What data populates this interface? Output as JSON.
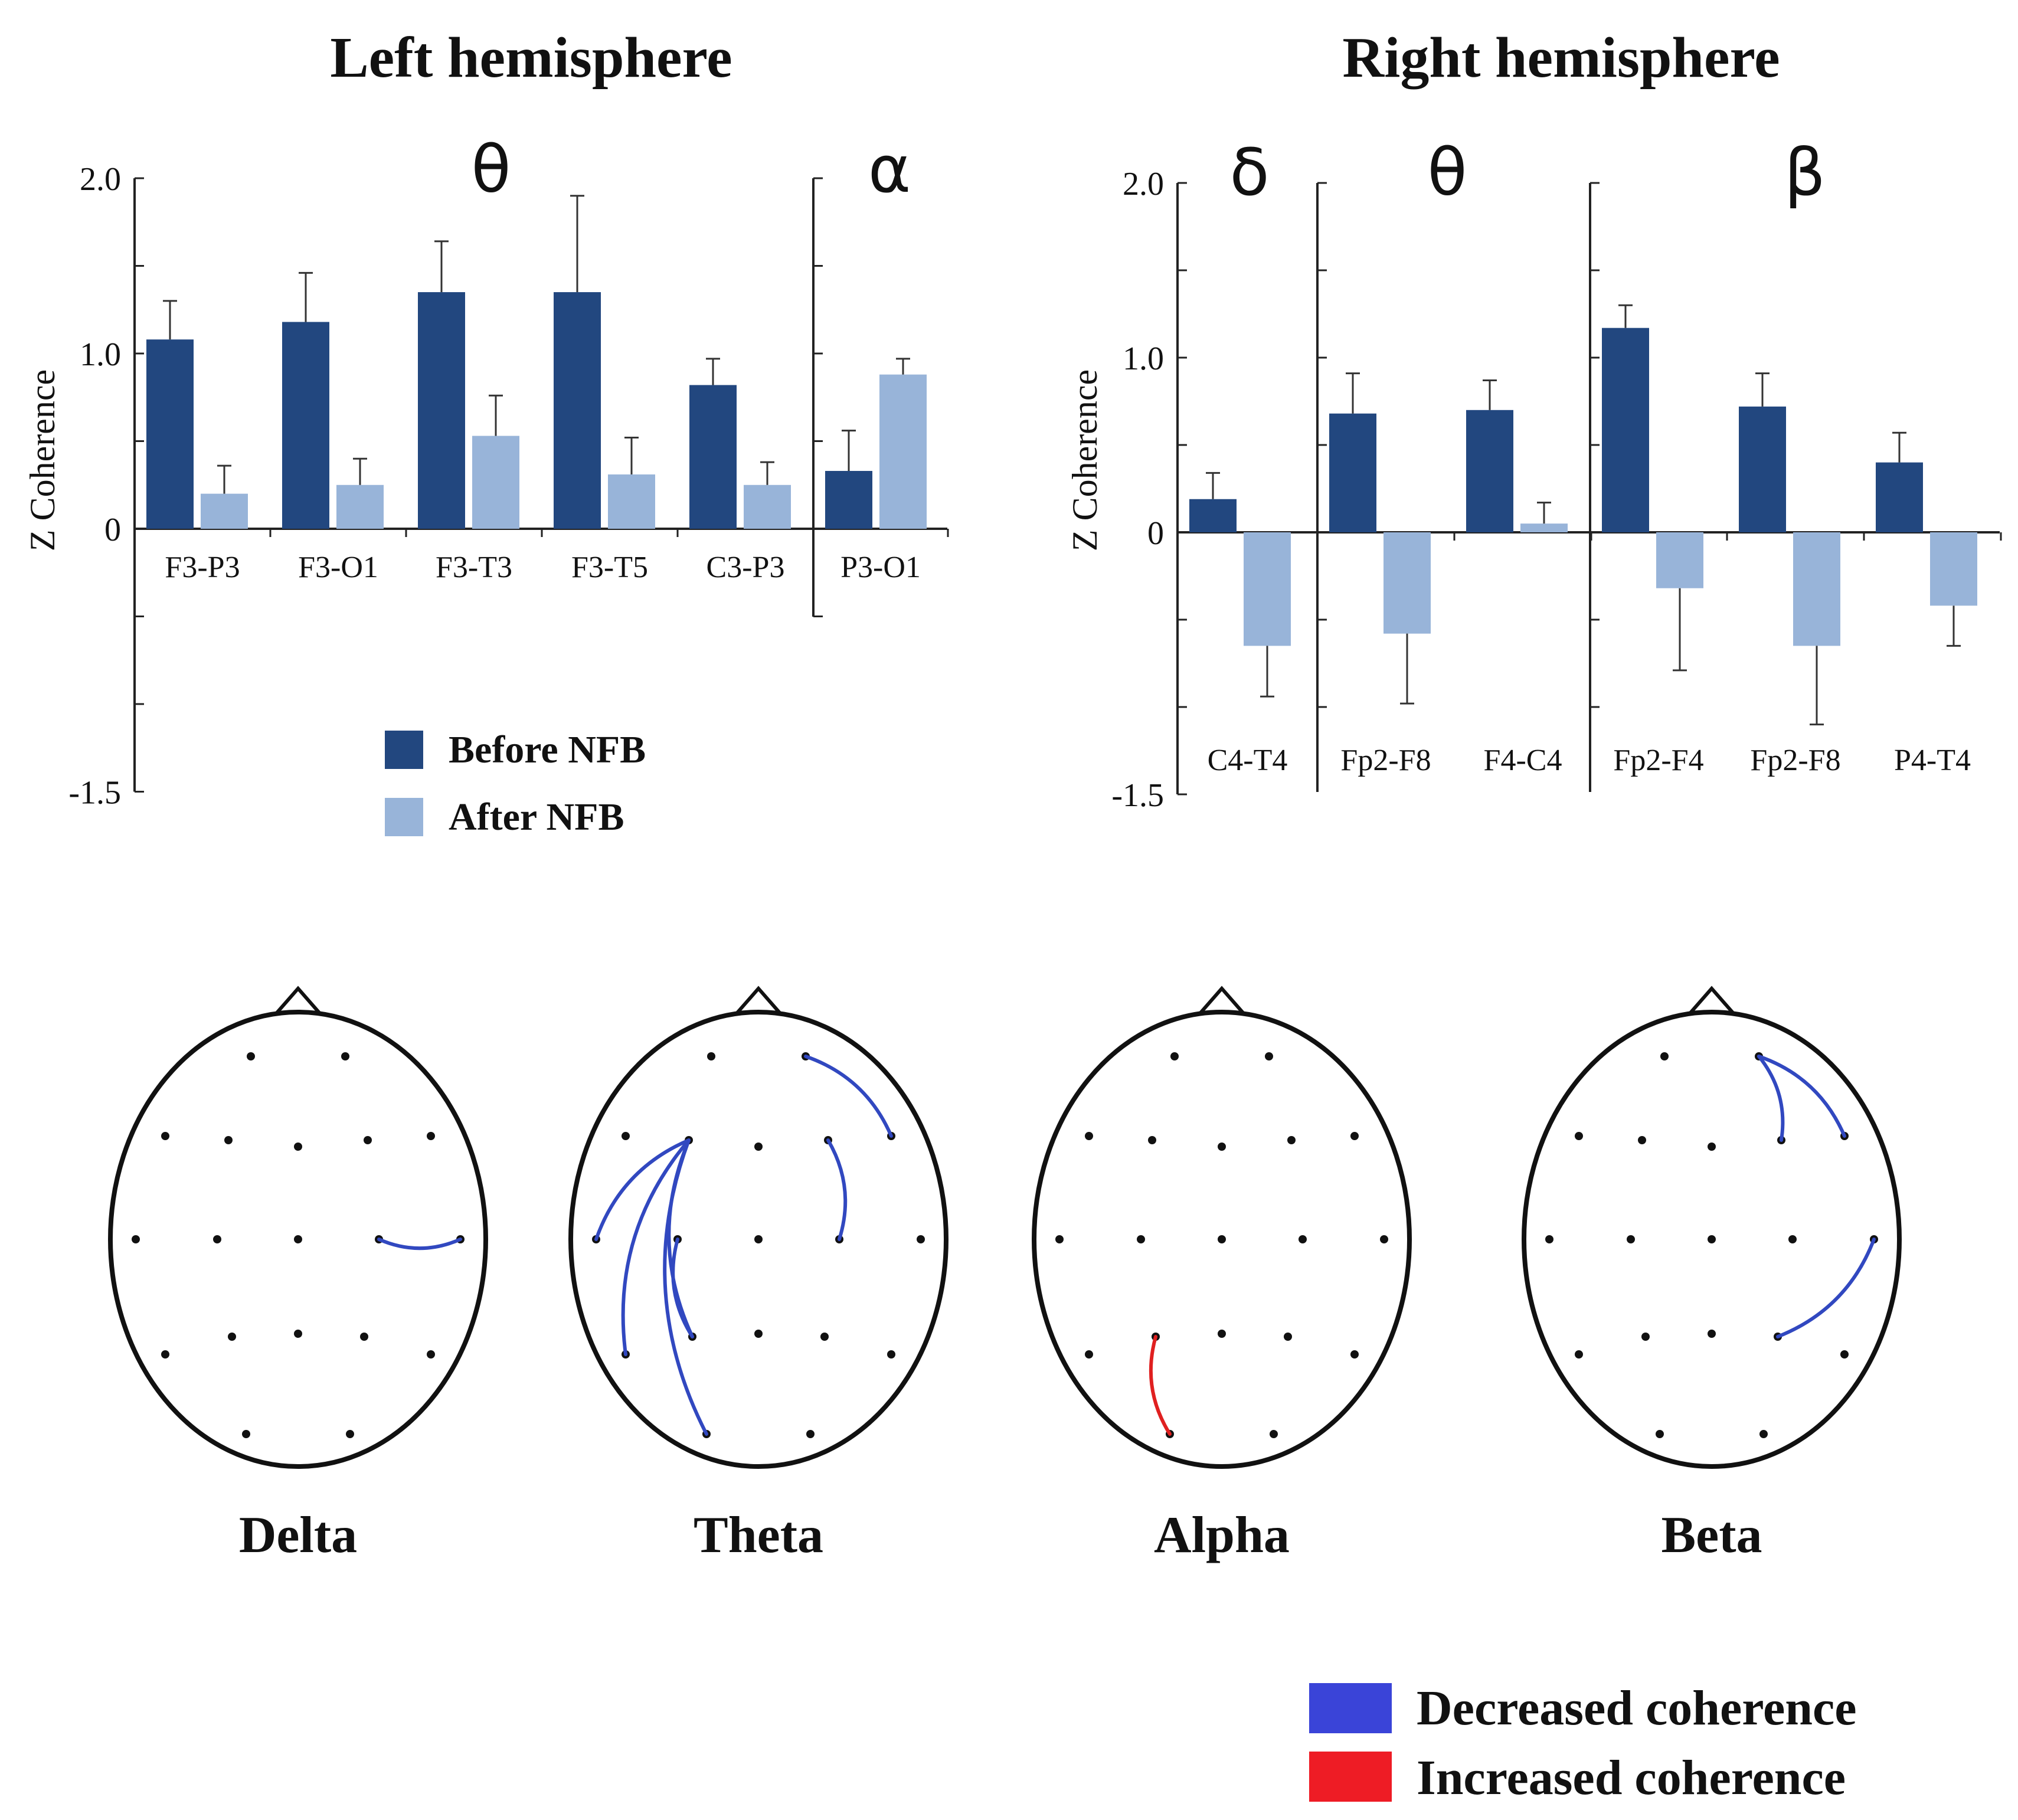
{
  "colors": {
    "before": "#22477f",
    "after": "#98b4d9",
    "decreased": "#3a44d8",
    "increased": "#ee1c25",
    "arc_blue": "#3148c0",
    "arc_red": "#e02020",
    "ink": "#111111"
  },
  "chart_data": [
    {
      "type": "bar",
      "title": "Left hemisphere",
      "ylabel": "Z Coherence",
      "ylim": [
        -1.5,
        2.0
      ],
      "yticks": [
        "2.0",
        "1.0",
        "0",
        "-1.5"
      ],
      "series_names": [
        "Before NFB",
        "After NFB"
      ],
      "groups": [
        {
          "band": "θ",
          "categories": [
            "F3-P3",
            "F3-O1",
            "F3-T3",
            "F3-T5",
            "C3-P3"
          ],
          "before": [
            1.08,
            1.18,
            1.35,
            1.35,
            0.82
          ],
          "before_err": [
            0.22,
            0.28,
            0.29,
            0.55,
            0.15
          ],
          "after": [
            0.2,
            0.25,
            0.53,
            0.31,
            0.25
          ],
          "after_err": [
            0.16,
            0.15,
            0.23,
            0.21,
            0.13
          ]
        },
        {
          "band": "α",
          "categories": [
            "P3-O1"
          ],
          "before": [
            0.33
          ],
          "before_err": [
            0.23
          ],
          "after": [
            0.88
          ],
          "after_err": [
            0.09
          ]
        }
      ],
      "legend": [
        "Before NFB",
        "After NFB"
      ]
    },
    {
      "type": "bar",
      "title": "Right hemisphere",
      "ylabel": "Z Coherence",
      "ylim": [
        -1.5,
        2.0
      ],
      "yticks": [
        "2.0",
        "1.0",
        "0",
        "-1.5"
      ],
      "series_names": [
        "Before NFB",
        "After NFB"
      ],
      "groups": [
        {
          "band": "δ",
          "categories": [
            "C4-T4"
          ],
          "before": [
            0.19
          ],
          "before_err": [
            0.15
          ],
          "after": [
            -0.65
          ],
          "after_err": [
            0.29
          ]
        },
        {
          "band": "θ",
          "categories": [
            "Fp2-F8",
            "F4-C4"
          ],
          "before": [
            0.68,
            0.7
          ],
          "before_err": [
            0.23,
            0.17
          ],
          "after": [
            -0.58,
            0.05
          ],
          "after_err": [
            0.4,
            0.12
          ]
        },
        {
          "band": "β",
          "categories": [
            "Fp2-F4",
            "Fp2-F8",
            "P4-T4"
          ],
          "before": [
            1.17,
            0.72,
            0.4
          ],
          "before_err": [
            0.13,
            0.19,
            0.17
          ],
          "after": [
            -0.32,
            -0.65,
            -0.42
          ],
          "after_err": [
            0.47,
            0.45,
            0.23
          ]
        }
      ]
    }
  ],
  "heads": [
    {
      "label": "Delta",
      "arcs": [
        {
          "from": "C4",
          "to": "T4",
          "type": "decreased"
        }
      ]
    },
    {
      "label": "Theta",
      "arcs": [
        {
          "from": "F3",
          "to": "T3",
          "type": "decreased"
        },
        {
          "from": "F3",
          "to": "T5",
          "type": "decreased"
        },
        {
          "from": "F3",
          "to": "O1",
          "type": "decreased"
        },
        {
          "from": "F3",
          "to": "P3",
          "type": "decreased"
        },
        {
          "from": "C3",
          "to": "P3",
          "type": "decreased"
        },
        {
          "from": "Fp2",
          "to": "F8",
          "type": "decreased"
        },
        {
          "from": "F4",
          "to": "C4",
          "type": "decreased"
        }
      ]
    },
    {
      "label": "Alpha",
      "arcs": [
        {
          "from": "P3",
          "to": "O1",
          "type": "increased"
        }
      ]
    },
    {
      "label": "Beta",
      "arcs": [
        {
          "from": "Fp2",
          "to": "F4",
          "type": "decreased"
        },
        {
          "from": "Fp2",
          "to": "F8",
          "type": "decreased"
        },
        {
          "from": "P4",
          "to": "T4",
          "type": "decreased"
        }
      ]
    }
  ],
  "legend_bottom": [
    {
      "label": "Decreased coherence",
      "type": "decreased"
    },
    {
      "label": "Increased coherence",
      "type": "increased"
    }
  ]
}
